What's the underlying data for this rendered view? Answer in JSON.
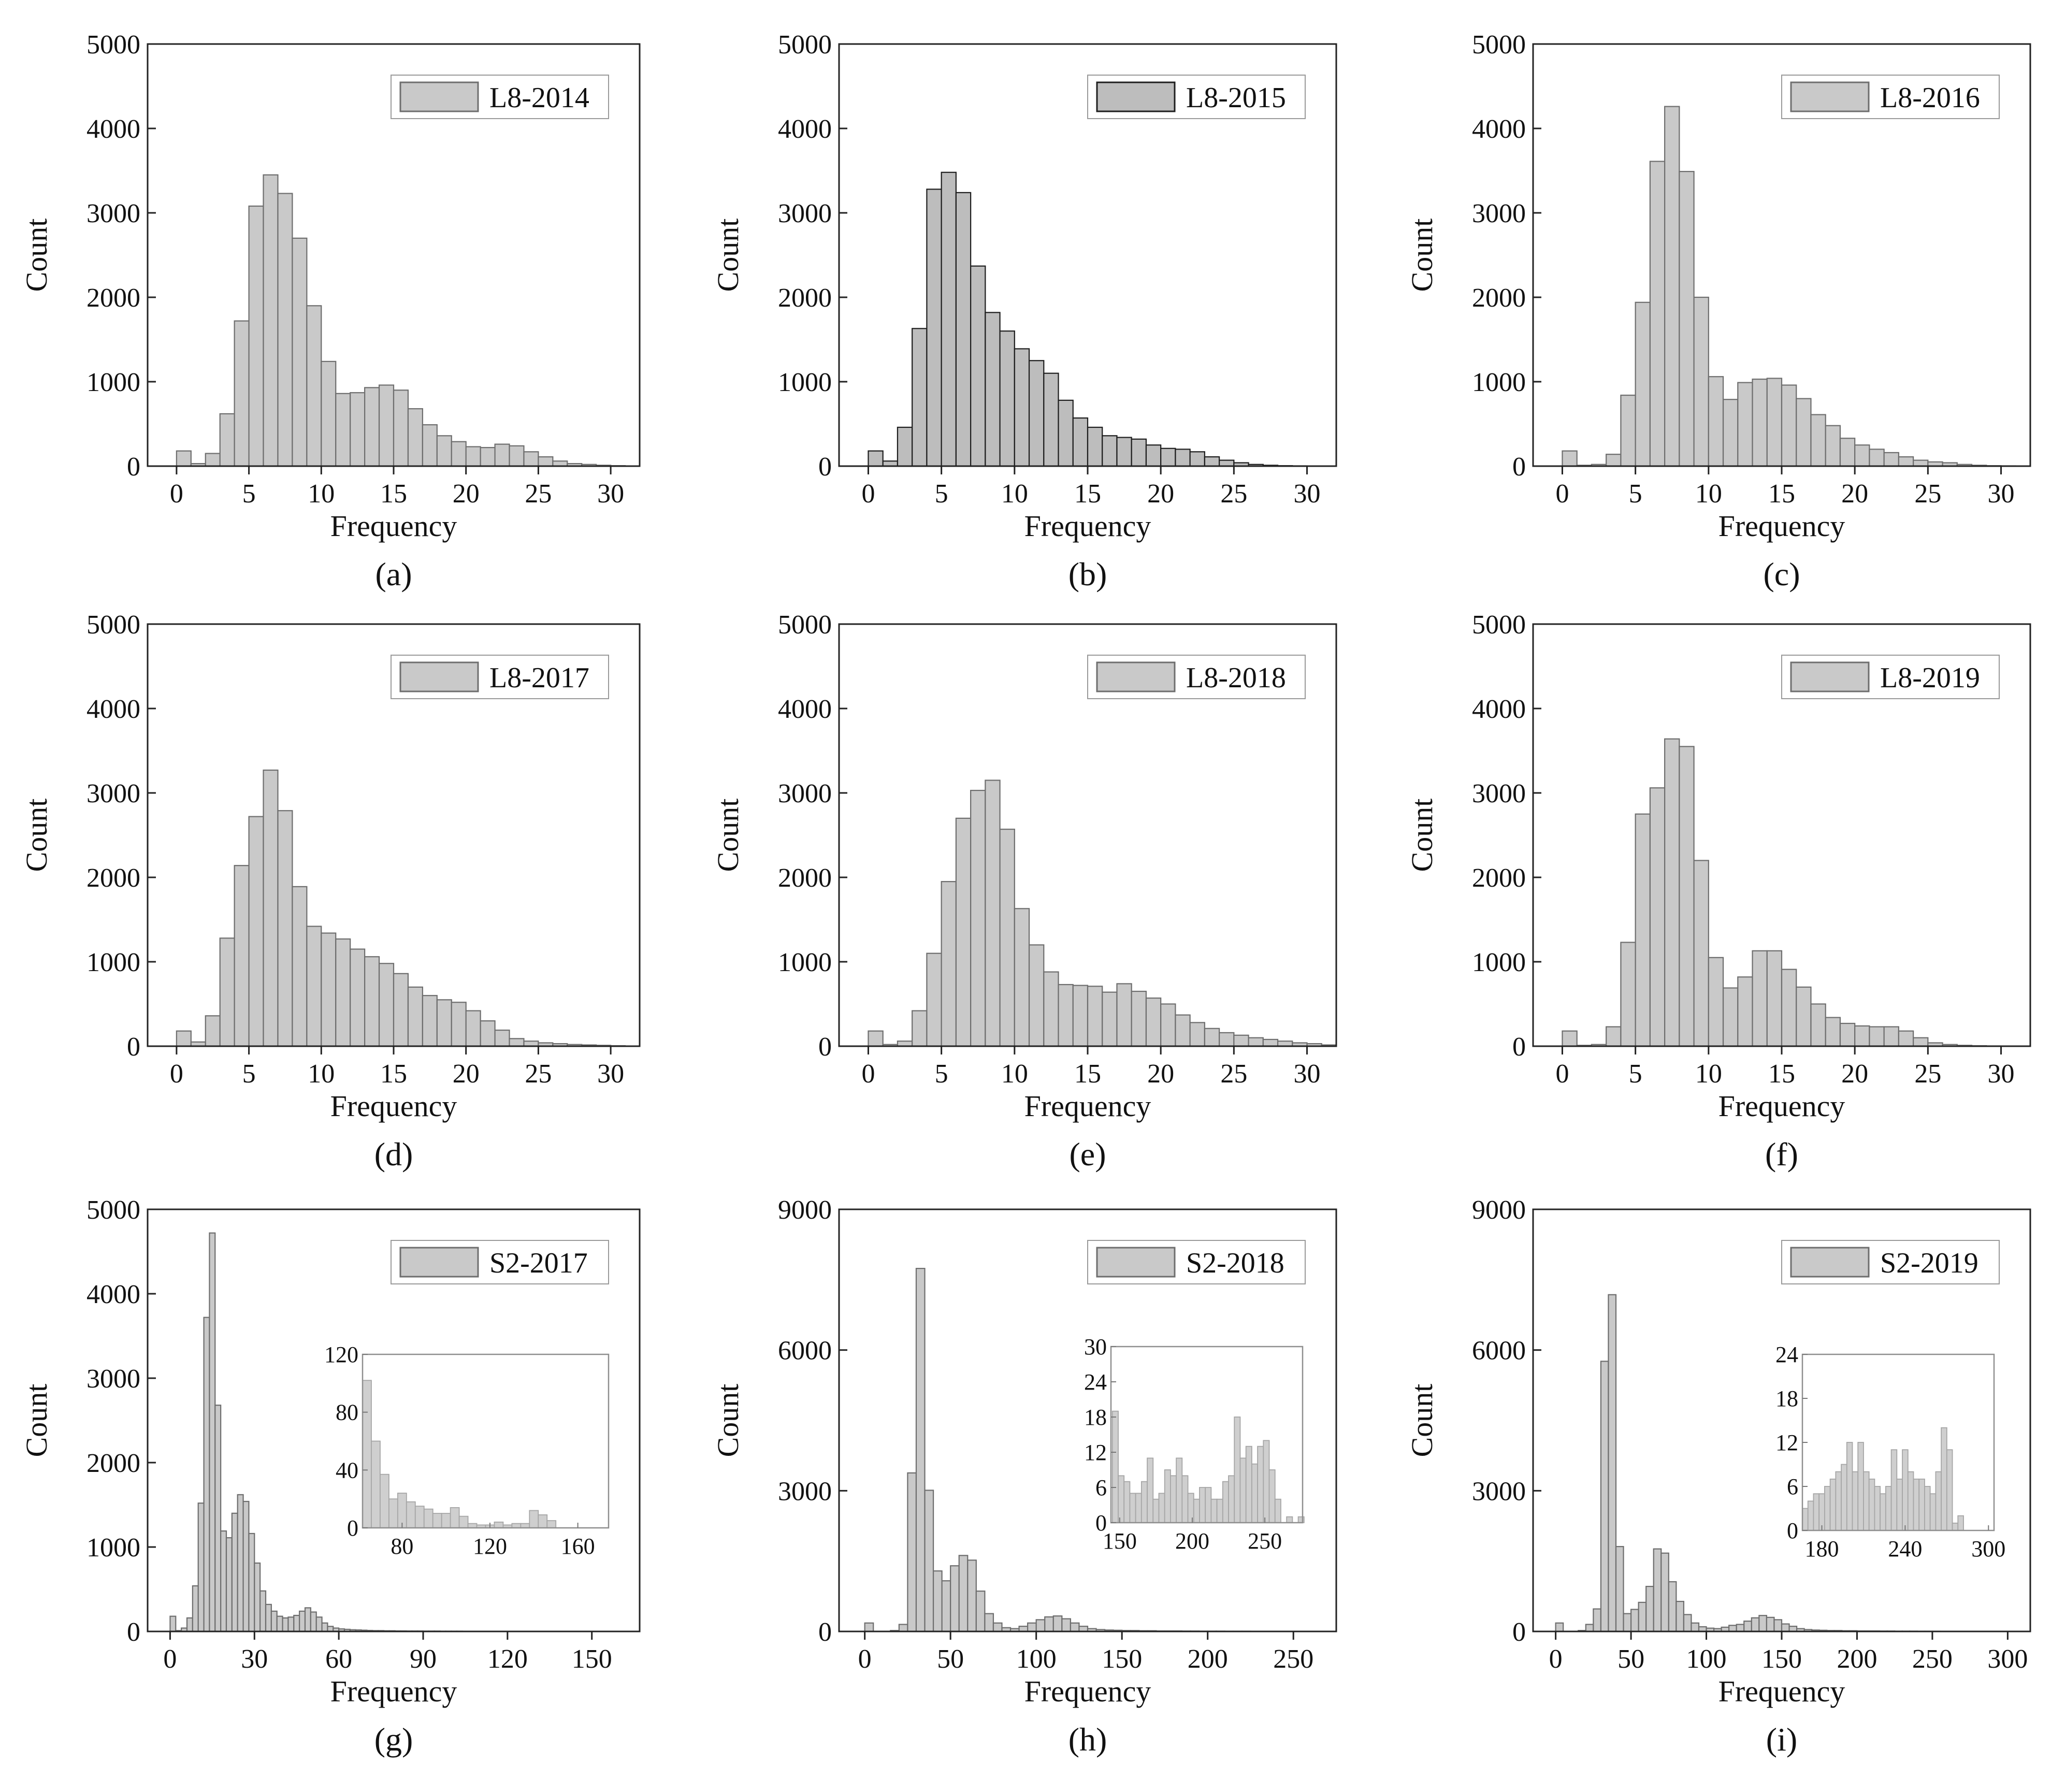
{
  "chart_data": [
    {
      "id": "a",
      "type": "bar",
      "title": "",
      "legend": "L8-2014",
      "panel_label": "(a)",
      "xlabel": "Frequency",
      "ylabel": "Count",
      "xlim": [
        -2,
        32
      ],
      "ylim": [
        0,
        5000
      ],
      "xticks": [
        0,
        5,
        10,
        15,
        20,
        25,
        30
      ],
      "yticks": [
        0,
        1000,
        2000,
        3000,
        4000,
        5000
      ],
      "bin_start": 0,
      "bin_width": 1,
      "fill": "#c9c9c9",
      "stroke": "#6e6e6e",
      "values": [
        180,
        30,
        150,
        620,
        1720,
        3080,
        3450,
        3230,
        2700,
        1900,
        1240,
        860,
        870,
        930,
        960,
        900,
        680,
        490,
        360,
        290,
        230,
        220,
        260,
        240,
        170,
        110,
        60,
        30,
        20,
        10,
        5
      ]
    },
    {
      "id": "b",
      "type": "bar",
      "title": "",
      "legend": "L8-2015",
      "panel_label": "(b)",
      "xlabel": "Frequency",
      "ylabel": "Count",
      "xlim": [
        -2,
        32
      ],
      "ylim": [
        0,
        5000
      ],
      "xticks": [
        0,
        5,
        10,
        15,
        20,
        25,
        30
      ],
      "yticks": [
        0,
        1000,
        2000,
        3000,
        4000,
        5000
      ],
      "bin_start": 0,
      "bin_width": 1,
      "fill": "#bdbdbd",
      "stroke": "#1e1e1e",
      "values": [
        180,
        60,
        460,
        1630,
        3280,
        3480,
        3240,
        2370,
        1820,
        1600,
        1390,
        1250,
        1100,
        780,
        570,
        460,
        360,
        340,
        320,
        250,
        210,
        200,
        170,
        110,
        70,
        40,
        20,
        10,
        5,
        3,
        2
      ]
    },
    {
      "id": "c",
      "type": "bar",
      "title": "",
      "legend": "L8-2016",
      "panel_label": "(c)",
      "xlabel": "Frequency",
      "ylabel": "Count",
      "xlim": [
        -2,
        32
      ],
      "ylim": [
        0,
        5000
      ],
      "xticks": [
        0,
        5,
        10,
        15,
        20,
        25,
        30
      ],
      "yticks": [
        0,
        1000,
        2000,
        3000,
        4000,
        5000
      ],
      "bin_start": 0,
      "bin_width": 1,
      "fill": "#c9c9c9",
      "stroke": "#6e6e6e",
      "values": [
        180,
        10,
        20,
        140,
        840,
        1940,
        3610,
        4260,
        3490,
        2000,
        1060,
        790,
        990,
        1030,
        1040,
        960,
        800,
        610,
        480,
        330,
        250,
        200,
        160,
        110,
        70,
        50,
        40,
        20,
        10,
        5,
        3
      ]
    },
    {
      "id": "d",
      "type": "bar",
      "title": "",
      "legend": "L8-2017",
      "panel_label": "(d)",
      "xlabel": "Frequency",
      "ylabel": "Count",
      "xlim": [
        -2,
        32
      ],
      "ylim": [
        0,
        5000
      ],
      "xticks": [
        0,
        5,
        10,
        15,
        20,
        25,
        30
      ],
      "yticks": [
        0,
        1000,
        2000,
        3000,
        4000,
        5000
      ],
      "bin_start": 0,
      "bin_width": 1,
      "fill": "#c9c9c9",
      "stroke": "#6e6e6e",
      "values": [
        180,
        50,
        360,
        1280,
        2140,
        2720,
        3270,
        2790,
        1890,
        1420,
        1340,
        1270,
        1150,
        1060,
        980,
        860,
        700,
        600,
        550,
        520,
        420,
        300,
        190,
        90,
        60,
        40,
        30,
        20,
        15,
        10,
        5
      ]
    },
    {
      "id": "e",
      "type": "bar",
      "title": "",
      "legend": "L8-2018",
      "panel_label": "(e)",
      "xlabel": "Frequency",
      "ylabel": "Count",
      "xlim": [
        -2,
        32
      ],
      "ylim": [
        0,
        5000
      ],
      "xticks": [
        0,
        5,
        10,
        15,
        20,
        25,
        30
      ],
      "yticks": [
        0,
        1000,
        2000,
        3000,
        4000,
        5000
      ],
      "bin_start": 0,
      "bin_width": 1,
      "fill": "#c9c9c9",
      "stroke": "#6e6e6e",
      "values": [
        180,
        20,
        60,
        420,
        1100,
        1950,
        2700,
        3030,
        3150,
        2570,
        1630,
        1200,
        880,
        730,
        720,
        710,
        640,
        740,
        650,
        570,
        500,
        370,
        280,
        210,
        160,
        130,
        100,
        80,
        60,
        40,
        30,
        15
      ]
    },
    {
      "id": "f",
      "type": "bar",
      "title": "",
      "legend": "L8-2019",
      "panel_label": "(f)",
      "xlabel": "Frequency",
      "ylabel": "Count",
      "xlim": [
        -2,
        32
      ],
      "ylim": [
        0,
        5000
      ],
      "xticks": [
        0,
        5,
        10,
        15,
        20,
        25,
        30
      ],
      "yticks": [
        0,
        1000,
        2000,
        3000,
        4000,
        5000
      ],
      "bin_start": 0,
      "bin_width": 1,
      "fill": "#c9c9c9",
      "stroke": "#6e6e6e",
      "values": [
        180,
        10,
        20,
        230,
        1230,
        2750,
        3060,
        3640,
        3550,
        2200,
        1050,
        690,
        820,
        1130,
        1130,
        910,
        700,
        500,
        340,
        270,
        240,
        230,
        230,
        180,
        100,
        40,
        20,
        10,
        5,
        3,
        2
      ]
    },
    {
      "id": "g",
      "type": "bar",
      "title": "",
      "legend": "S2-2017",
      "panel_label": "(g)",
      "xlabel": "Frequency",
      "ylabel": "Count",
      "xlim": [
        -8,
        167
      ],
      "ylim": [
        0,
        5000
      ],
      "xticks": [
        0,
        30,
        60,
        90,
        120,
        150
      ],
      "yticks": [
        0,
        1000,
        2000,
        3000,
        4000,
        5000
      ],
      "bin_start": 0,
      "bin_width": 2,
      "fill": "#c9c9c9",
      "stroke": "#6e6e6e",
      "values": [
        180,
        10,
        40,
        160,
        540,
        1520,
        3720,
        4720,
        2680,
        1190,
        1110,
        1400,
        1620,
        1540,
        1160,
        810,
        480,
        320,
        240,
        180,
        160,
        170,
        190,
        240,
        280,
        230,
        170,
        100,
        60,
        40,
        30,
        25,
        20,
        18,
        15,
        12,
        10,
        10,
        8,
        8,
        6,
        6,
        5,
        5,
        5,
        4,
        4,
        4,
        3,
        3,
        3,
        3,
        2,
        2,
        2,
        2,
        2,
        2,
        2,
        2,
        1,
        1,
        1,
        1,
        1,
        1,
        1,
        1,
        1,
        1,
        1,
        1,
        1,
        1,
        1,
        1,
        1,
        1,
        1,
        1
      ],
      "inset": {
        "xlim": [
          62,
          174
        ],
        "ylim": [
          0,
          120
        ],
        "xticks": [
          80,
          120,
          160
        ],
        "yticks": [
          0,
          40,
          80,
          120
        ],
        "bin_start": 62,
        "bin_width": 4,
        "values": [
          102,
          60,
          37,
          20,
          24,
          18,
          15,
          13,
          10,
          10,
          14,
          8,
          3,
          2,
          2,
          4,
          2,
          3,
          3,
          12,
          9,
          5
        ]
      }
    },
    {
      "id": "h",
      "type": "bar",
      "title": "",
      "legend": "S2-2018",
      "panel_label": "(h)",
      "xlabel": "Frequency",
      "ylabel": "Count",
      "xlim": [
        -15,
        275
      ],
      "ylim": [
        0,
        9000
      ],
      "xticks": [
        0,
        50,
        100,
        150,
        200,
        250
      ],
      "yticks": [
        0,
        3000,
        6000,
        9000
      ],
      "bin_start": 0,
      "bin_width": 5,
      "fill": "#c9c9c9",
      "stroke": "#6e6e6e",
      "values": [
        180,
        0,
        0,
        20,
        150,
        3380,
        7740,
        3010,
        1290,
        1080,
        1400,
        1620,
        1520,
        860,
        380,
        180,
        80,
        60,
        110,
        180,
        250,
        310,
        330,
        270,
        180,
        110,
        60,
        40,
        30,
        25,
        20,
        20,
        15,
        15,
        10,
        10,
        10,
        8,
        8,
        6,
        6,
        6,
        5,
        5,
        5,
        4,
        4,
        4,
        3,
        3
      ],
      "inset": {
        "xlim": [
          144,
          276
        ],
        "ylim": [
          0,
          30
        ],
        "xticks": [
          150,
          200,
          250
        ],
        "yticks": [
          0,
          6,
          12,
          18,
          24,
          30
        ],
        "bin_start": 145,
        "bin_width": 4,
        "values": [
          19,
          8,
          7,
          5,
          5,
          7,
          11,
          4,
          5,
          9,
          8,
          11,
          8,
          5,
          4,
          6,
          6,
          4,
          4,
          7,
          8,
          18,
          11,
          13,
          10,
          13,
          14,
          9,
          4,
          0,
          1,
          0,
          1
        ]
      }
    },
    {
      "id": "i",
      "type": "bar",
      "title": "",
      "legend": "S2-2019",
      "panel_label": "(i)",
      "xlabel": "Frequency",
      "ylabel": "Count",
      "xlim": [
        -15,
        315
      ],
      "ylim": [
        0,
        9000
      ],
      "xticks": [
        0,
        50,
        100,
        150,
        200,
        250,
        300
      ],
      "yticks": [
        0,
        3000,
        6000,
        9000
      ],
      "bin_start": 0,
      "bin_width": 5,
      "fill": "#c9c9c9",
      "stroke": "#6e6e6e",
      "values": [
        180,
        0,
        0,
        20,
        150,
        480,
        5760,
        7180,
        1810,
        380,
        470,
        620,
        960,
        1760,
        1670,
        1060,
        640,
        360,
        180,
        100,
        70,
        60,
        90,
        130,
        150,
        220,
        290,
        340,
        300,
        250,
        160,
        110,
        60,
        40,
        30,
        25,
        20,
        20,
        15,
        15,
        10,
        10,
        10,
        8,
        8,
        6,
        6,
        6,
        5,
        5,
        5,
        4,
        4,
        4,
        3,
        3,
        2,
        2,
        2,
        2
      ],
      "inset": {
        "xlim": [
          166,
          304
        ],
        "ylim": [
          0,
          24
        ],
        "xticks": [
          180,
          240,
          300
        ],
        "yticks": [
          0,
          6,
          12,
          18,
          24
        ],
        "bin_start": 166,
        "bin_width": 4,
        "values": [
          3,
          4,
          5,
          5,
          6,
          7,
          8,
          9,
          12,
          8,
          12,
          8,
          7,
          6,
          5,
          6,
          11,
          7,
          11,
          8,
          7,
          7,
          6,
          5,
          8,
          14,
          11,
          1,
          2,
          0,
          0,
          0
        ]
      }
    }
  ]
}
